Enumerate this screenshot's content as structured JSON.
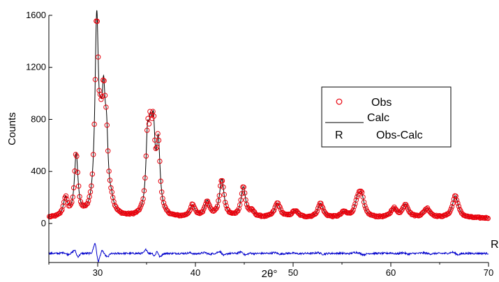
{
  "chart_data": {
    "type": "line",
    "title": "",
    "xlabel": "2θ°",
    "ylabel": "Counts",
    "xlim": [
      25,
      70
    ],
    "ylim": [
      -300,
      1600
    ],
    "x_ticks": [
      30,
      40,
      50,
      60,
      70
    ],
    "y_ticks": [
      0,
      400,
      800,
      1200,
      1600
    ],
    "grid": false,
    "legend_position": "right",
    "colors": {
      "obs": "#e8000b",
      "calc": "#000000",
      "diff": "#0000cc"
    },
    "background": 40,
    "peaks": [
      {
        "x": 26.7,
        "h": 140,
        "w": 0.25
      },
      {
        "x": 27.8,
        "h": 470,
        "w": 0.22
      },
      {
        "x": 29.9,
        "h": 1460,
        "w": 0.22
      },
      {
        "x": 30.3,
        "h": 320,
        "w": 0.18
      },
      {
        "x": 30.6,
        "h": 720,
        "w": 0.2
      },
      {
        "x": 30.9,
        "h": 480,
        "w": 0.2
      },
      {
        "x": 31.4,
        "h": 70,
        "w": 0.25
      },
      {
        "x": 35.1,
        "h": 520,
        "w": 0.2
      },
      {
        "x": 35.4,
        "h": 450,
        "w": 0.2
      },
      {
        "x": 35.7,
        "h": 540,
        "w": 0.2
      },
      {
        "x": 36.2,
        "h": 520,
        "w": 0.22
      },
      {
        "x": 39.7,
        "h": 90,
        "w": 0.3
      },
      {
        "x": 41.2,
        "h": 120,
        "w": 0.3
      },
      {
        "x": 42.7,
        "h": 290,
        "w": 0.28
      },
      {
        "x": 44.9,
        "h": 230,
        "w": 0.28
      },
      {
        "x": 45.8,
        "h": 40,
        "w": 0.3
      },
      {
        "x": 48.4,
        "h": 110,
        "w": 0.35
      },
      {
        "x": 50.2,
        "h": 50,
        "w": 0.4
      },
      {
        "x": 52.8,
        "h": 110,
        "w": 0.32
      },
      {
        "x": 55.2,
        "h": 40,
        "w": 0.35
      },
      {
        "x": 56.6,
        "h": 120,
        "w": 0.32
      },
      {
        "x": 57.0,
        "h": 150,
        "w": 0.32
      },
      {
        "x": 60.3,
        "h": 70,
        "w": 0.35
      },
      {
        "x": 61.5,
        "h": 100,
        "w": 0.35
      },
      {
        "x": 63.7,
        "h": 70,
        "w": 0.4
      },
      {
        "x": 66.6,
        "h": 170,
        "w": 0.35
      }
    ],
    "diff_offset": -230,
    "obs_step": 0.1,
    "series": [
      {
        "name": "Obs",
        "style": "open-circles"
      },
      {
        "name": "Calc",
        "style": "line"
      },
      {
        "name": "Obs-Calc",
        "style": "line",
        "end_label": "R"
      }
    ]
  },
  "legend": {
    "obs_label": "Obs",
    "calc_label": "Calc",
    "diff_marker": "R",
    "diff_label": "Obs-Calc"
  },
  "annotations": {
    "diff_end_label": "R"
  }
}
